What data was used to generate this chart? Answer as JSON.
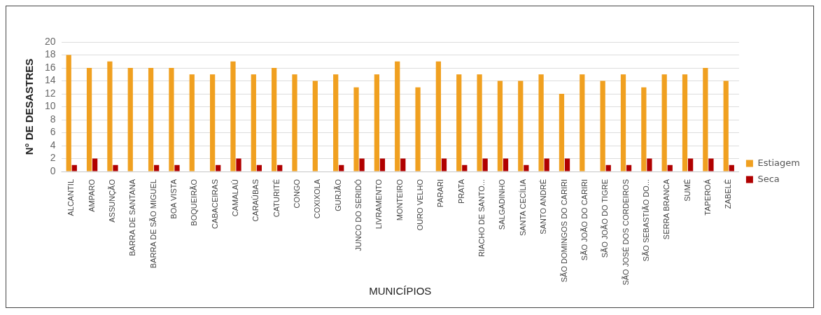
{
  "chart_data": {
    "type": "bar",
    "xlabel": "MUNICÍPIOS",
    "ylabel": "N° DE DESASTRES",
    "categories": [
      "ALCANTIL",
      "AMPARO",
      "ASSUNÇÃO",
      "BARRA DE SANTANA",
      "BARRA DE SÃO MIGUEL",
      "BOA VISTA",
      "BOQUEIRÃO",
      "CABACEIRAS",
      "CAMALAÚ",
      "CARAÚBAS",
      "CATURITÉ",
      "CONGO",
      "COXIXOLA",
      "GURJÃO",
      "JUNCO DO SERIDÓ",
      "LIVRAMENTO",
      "MONTEIRO",
      "OURO VELHO",
      "PARARI",
      "PRATA",
      "RIACHO DE SANTO...",
      "SALGADINHO",
      "SANTA CECÍLIA",
      "SANTO ANDRÉ",
      "SÃO DOMINGOS DO CARIRI",
      "SÃO JOÃO DO CARIRI",
      "SÃO JOÃO DO TIGRE",
      "SÃO JOSÉ DOS CORDEIROS",
      "SÃO SEBASTIÃO DO...",
      "SERRA BRANCA",
      "SUMÉ",
      "TAPEROÁ",
      "ZABELÊ"
    ],
    "series": [
      {
        "name": "Estiagem",
        "color": "#f0a020",
        "values": [
          18,
          16,
          17,
          16,
          16,
          16,
          15,
          15,
          17,
          15,
          16,
          15,
          14,
          15,
          13,
          15,
          17,
          13,
          17,
          15,
          15,
          14,
          14,
          15,
          12,
          15,
          14,
          15,
          13,
          15,
          15,
          16,
          14
        ]
      },
      {
        "name": "Seca",
        "color": "#b00000",
        "values": [
          1,
          2,
          1,
          0,
          1,
          1,
          0,
          1,
          2,
          1,
          1,
          0,
          0,
          1,
          2,
          2,
          2,
          0,
          2,
          1,
          2,
          2,
          1,
          2,
          2,
          0,
          1,
          1,
          2,
          1,
          2,
          2,
          1
        ]
      }
    ],
    "ylim": [
      0,
      20
    ],
    "yticks": [
      0,
      2,
      4,
      6,
      8,
      10,
      12,
      14,
      16,
      18,
      20
    ],
    "grid": "y",
    "legend": "right"
  }
}
